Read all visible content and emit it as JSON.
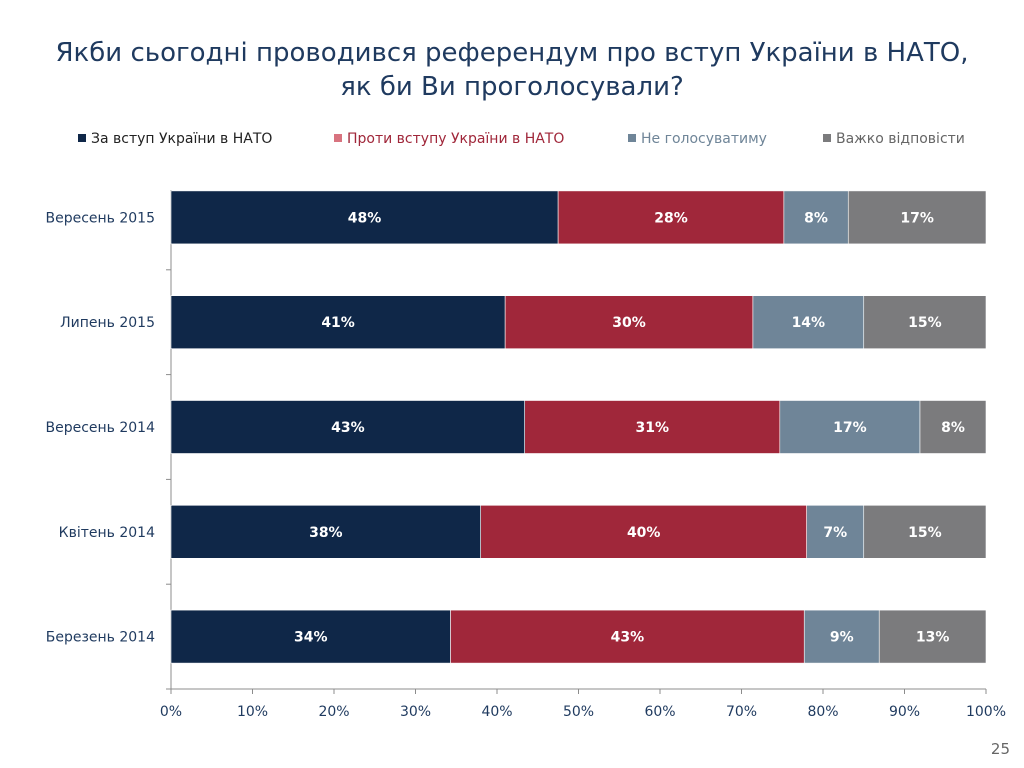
{
  "slide": {
    "title": "Якби сьогодні проводився референдум про вступ України в НАТО, як би Ви проголосували?",
    "page_number": "25"
  },
  "colors": {
    "title": "#1f3a5f",
    "for": "#0f2748",
    "against": "#a0273a",
    "wont_vote": "#6f8598",
    "hard_to_say": "#7b7b7d",
    "legend_against_text": "#a0273a",
    "legend_wont_vote_text": "#6f8598",
    "legend_hard_text": "#666666"
  },
  "chart_data": {
    "type": "bar",
    "orientation": "horizontal",
    "stacked": true,
    "title": "Якби сьогодні проводився референдум про вступ України в НАТО, як би Ви проголосували?",
    "categories": [
      "Вересень 2015",
      "Липень 2015",
      "Вересень 2014",
      "Квітень 2014",
      "Березень 2014"
    ],
    "series": [
      {
        "name": "За вступ України в НАТО",
        "values": [
          48,
          41,
          43,
          38,
          34
        ],
        "color": "#0f2748"
      },
      {
        "name": "Проти вступу України в НАТО",
        "values": [
          28,
          30,
          31,
          40,
          43
        ],
        "color": "#a0273a"
      },
      {
        "name": "Не голосуватиму",
        "values": [
          8,
          14,
          17,
          7,
          9
        ],
        "color": "#6f8598"
      },
      {
        "name": "Важко відповісти",
        "values": [
          17,
          15,
          8,
          15,
          13
        ],
        "color": "#7b7b7d"
      }
    ],
    "bar_values_raw": [
      [
        47.5,
        27.7,
        7.9,
        16.9
      ],
      [
        41.0,
        30.4,
        13.6,
        15.0
      ],
      [
        43.4,
        31.3,
        17.2,
        8.1
      ],
      [
        38.0,
        40.0,
        7.0,
        15.0
      ],
      [
        34.3,
        43.4,
        9.2,
        13.1
      ]
    ],
    "data_labels": [
      [
        "48%",
        "28%",
        "8%",
        "17%"
      ],
      [
        "41%",
        "30%",
        "14%",
        "15%"
      ],
      [
        "43%",
        "31%",
        "17%",
        "8%"
      ],
      [
        "38%",
        "40%",
        "7%",
        "15%"
      ],
      [
        "34%",
        "43%",
        "9%",
        "13%"
      ]
    ],
    "xlim": [
      0,
      100
    ],
    "x_ticks": [
      "0%",
      "10%",
      "20%",
      "30%",
      "40%",
      "50%",
      "60%",
      "70%",
      "80%",
      "90%",
      "100%"
    ],
    "grid": false,
    "legend_position": "top"
  }
}
